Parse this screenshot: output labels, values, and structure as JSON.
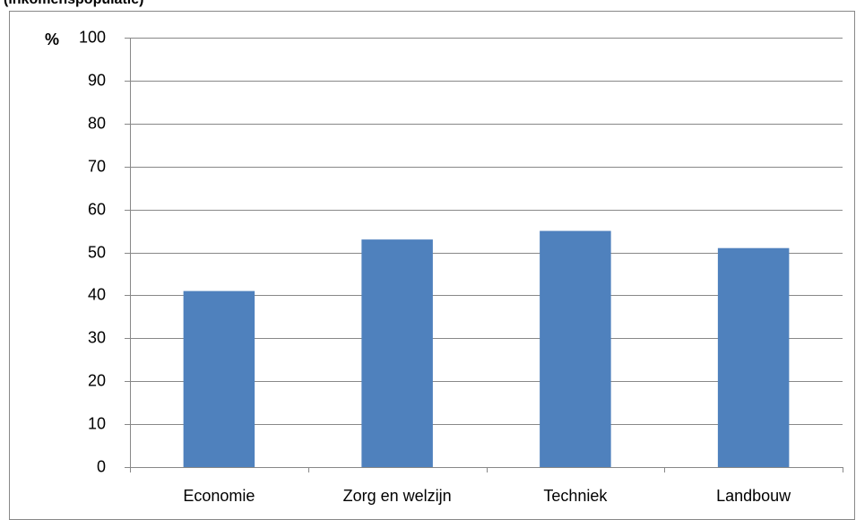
{
  "chart_data": {
    "type": "bar",
    "title": "(inkomenspopulatie)",
    "y_label": "%",
    "categories": [
      "Economie",
      "Zorg en welzijn",
      "Techniek",
      "Landbouw"
    ],
    "values": [
      41,
      53,
      55,
      51
    ],
    "color": "#4f81bd",
    "ylim": [
      0,
      100
    ],
    "yticks": [
      0,
      10,
      20,
      30,
      40,
      50,
      60,
      70,
      80,
      90,
      100
    ],
    "grid": true
  }
}
